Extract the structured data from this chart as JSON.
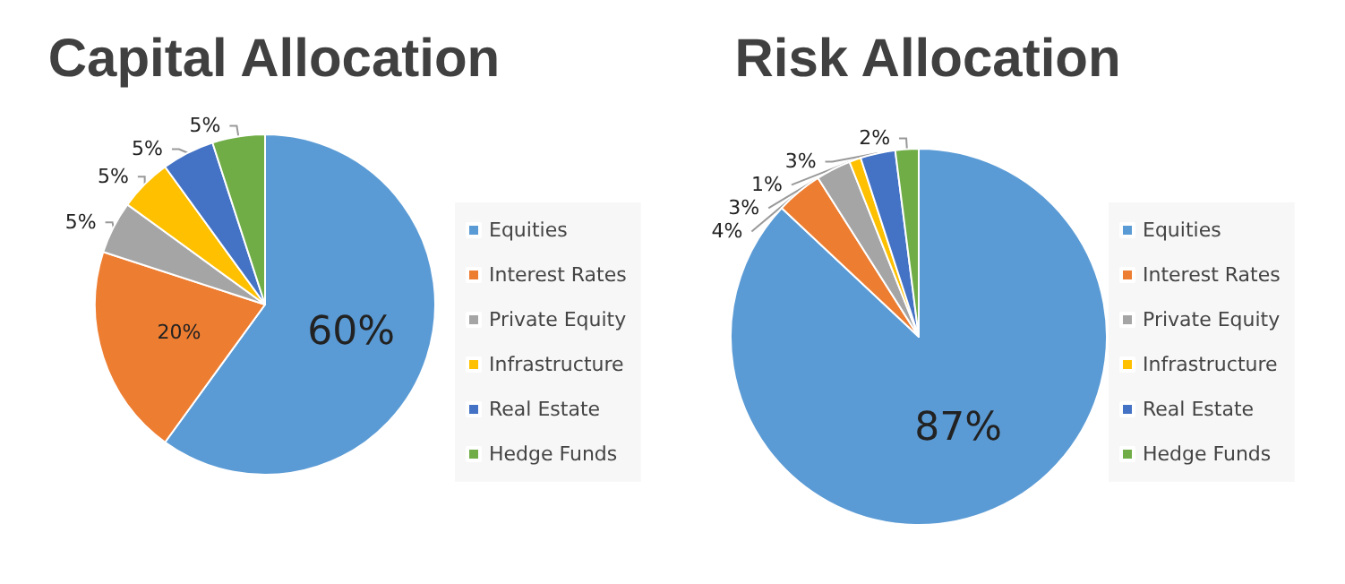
{
  "chart_data": [
    {
      "type": "pie",
      "title": "Capital Allocation",
      "categories": [
        "Equities",
        "Interest Rates",
        "Private Equity",
        "Infrastructure",
        "Real Estate",
        "Hedge Funds"
      ],
      "values": [
        60,
        20,
        5,
        5,
        5,
        5
      ],
      "value_labels": [
        "60%",
        "20%",
        "5%",
        "5%",
        "5%",
        "5%"
      ],
      "colors": [
        "#5b9bd5",
        "#ed7d31",
        "#a5a5a5",
        "#ffc000",
        "#4472c4",
        "#70ad47"
      ],
      "legend": "right"
    },
    {
      "type": "pie",
      "title": "Risk Allocation",
      "categories": [
        "Equities",
        "Interest Rates",
        "Private Equity",
        "Infrastructure",
        "Real Estate",
        "Hedge Funds"
      ],
      "values": [
        87,
        4,
        3,
        1,
        3,
        2
      ],
      "value_labels": [
        "87%",
        "4%",
        "3%",
        "1%",
        "3%",
        "2%"
      ],
      "colors": [
        "#5b9bd5",
        "#ed7d31",
        "#a5a5a5",
        "#ffc000",
        "#4472c4",
        "#70ad47"
      ],
      "legend": "right"
    }
  ]
}
